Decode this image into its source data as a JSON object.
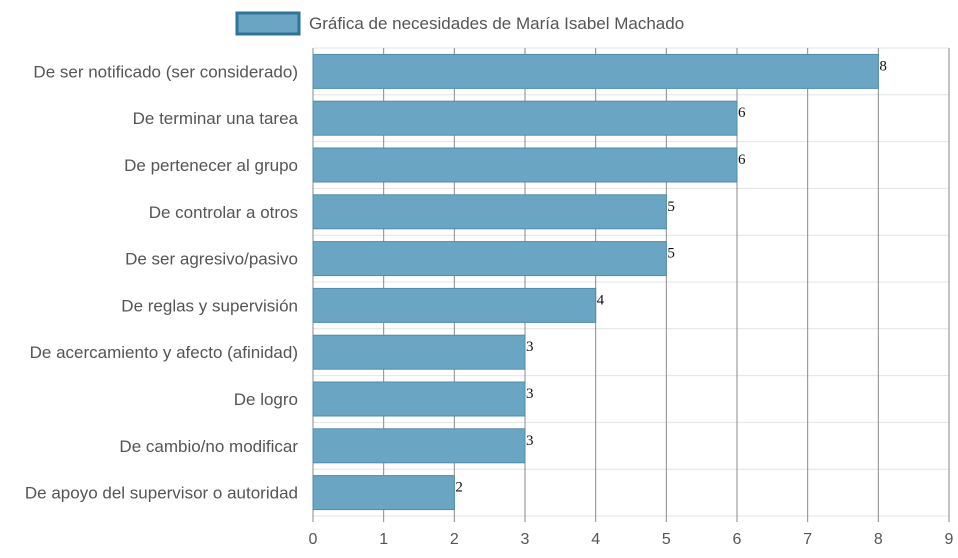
{
  "chart_data": {
    "type": "bar",
    "orientation": "horizontal",
    "categories": [
      "De ser notificado (ser considerado)",
      "De terminar una tarea",
      "De pertenecer al grupo",
      "De controlar a otros",
      "De ser agresivo/pasivo",
      "De reglas y supervisión",
      "De acercamiento y afecto (afinidad)",
      "De logro",
      "De cambio/no modificar",
      "De apoyo del supervisor o autoridad"
    ],
    "series": [
      {
        "name": "Gráfica de necesidades de María Isabel Machado",
        "values": [
          8,
          6,
          6,
          5,
          5,
          4,
          3,
          3,
          3,
          2
        ]
      }
    ],
    "data_labels": [
      "8",
      "6",
      "6",
      "5",
      "5",
      "4",
      "3",
      "3",
      "3",
      "2"
    ],
    "x_ticks": [
      "0",
      "1",
      "2",
      "3",
      "4",
      "5",
      "6",
      "7",
      "8",
      "9"
    ],
    "xlim": [
      0,
      9
    ],
    "grid": true,
    "legend_position": "top",
    "colors": {
      "bar_fill": "#6aa5c4",
      "bar_stroke": "#4f8cad",
      "legend_fill": "#6aa5c4",
      "legend_stroke": "#2f7399",
      "grid_vertical": "#8a8a8a",
      "grid_horizontal": "#e4e4e4"
    }
  }
}
